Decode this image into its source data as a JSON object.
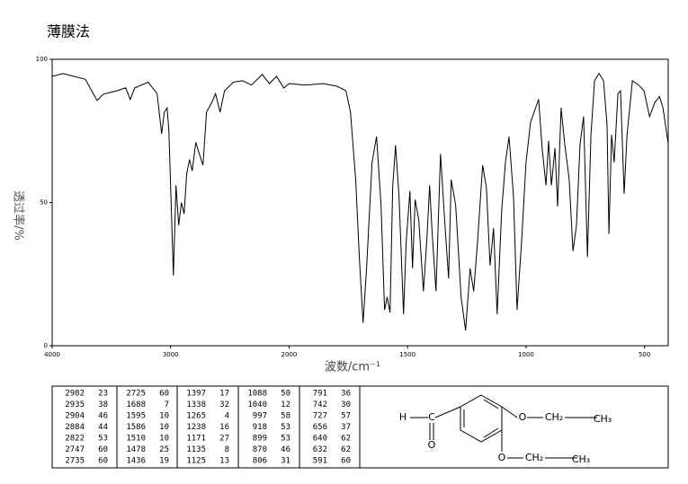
{
  "chart_data": {
    "type": "line",
    "title": "薄膜法",
    "xlabel": "波数/cm⁻¹",
    "ylabel": "透过率/%",
    "xlim": [
      4000,
      400
    ],
    "ylim": [
      0,
      100
    ],
    "xticks": [
      4000,
      3000,
      2000,
      1500,
      1000,
      500
    ],
    "yticks": [
      0,
      50,
      100
    ],
    "x_scale_change": {
      "at": 2000,
      "ratio": 2
    },
    "grid": false,
    "color": "#000000",
    "x": [
      4000,
      3909,
      3720,
      3621,
      3568,
      3455,
      3379,
      3341,
      3303,
      3189,
      3114,
      3076,
      3053,
      3030,
      3015,
      2977,
      2955,
      2932,
      2909,
      2886,
      2864,
      2841,
      2818,
      2788,
      2758,
      2727,
      2697,
      2652,
      2621,
      2583,
      2545,
      2470,
      2394,
      2318,
      2227,
      2167,
      2106,
      2045,
      2000,
      1932,
      1856,
      1798,
      1760,
      1741,
      1719,
      1703,
      1688,
      1673,
      1650,
      1631,
      1612,
      1597,
      1586,
      1574,
      1563,
      1551,
      1536,
      1517,
      1506,
      1490,
      1479,
      1468,
      1453,
      1433,
      1418,
      1407,
      1396,
      1380,
      1361,
      1342,
      1327,
      1316,
      1297,
      1274,
      1255,
      1236,
      1221,
      1205,
      1183,
      1167,
      1152,
      1137,
      1122,
      1103,
      1087,
      1072,
      1053,
      1038,
      1019,
      1000,
      981,
      966,
      947,
      932,
      916,
      905,
      893,
      878,
      867,
      852,
      837,
      818,
      802,
      787,
      772,
      757,
      741,
      726,
      711,
      692,
      673,
      658,
      650,
      639,
      628,
      612,
      601,
      586,
      574,
      551,
      525,
      502,
      479,
      456,
      437,
      422,
      400
    ],
    "values": [
      94,
      95,
      93,
      85.6,
      87.8,
      89,
      90,
      86,
      90,
      92,
      88,
      74,
      81.5,
      83,
      75,
      24.5,
      56,
      42,
      50,
      46,
      60,
      65,
      61,
      71,
      67,
      63,
      81.5,
      85,
      88,
      81.5,
      89,
      92,
      92.5,
      91,
      94.7,
      91.5,
      94,
      90,
      91.5,
      91,
      91.5,
      90.6,
      89,
      81.5,
      58,
      30,
      8,
      27,
      64,
      73,
      49,
      12.5,
      17,
      11.6,
      55,
      70,
      52,
      11,
      36,
      54,
      27,
      51,
      44,
      19,
      38,
      56,
      39,
      19,
      67,
      42,
      23.5,
      58,
      49,
      17,
      5.3,
      27,
      19,
      36,
      63,
      55,
      28,
      41,
      11,
      47,
      64,
      73,
      52,
      12.5,
      36,
      64,
      78,
      81.5,
      86,
      69,
      56,
      71.5,
      56,
      69,
      48.6,
      83,
      70.5,
      58,
      33,
      42,
      70.5,
      80,
      31,
      73.6,
      92.5,
      95,
      92.5,
      77,
      39,
      73.6,
      64,
      88,
      89,
      53,
      73.6,
      92.5,
      91,
      89,
      80,
      85,
      87,
      83,
      70.5
    ]
  },
  "peak_table": {
    "columns": [
      [
        [
          2982,
          23
        ],
        [
          2935,
          38
        ],
        [
          2904,
          46
        ],
        [
          2884,
          44
        ],
        [
          2822,
          53
        ],
        [
          2747,
          60
        ],
        [
          2735,
          60
        ]
      ],
      [
        [
          2725,
          60
        ],
        [
          1688,
          7
        ],
        [
          1595,
          10
        ],
        [
          1586,
          10
        ],
        [
          1510,
          10
        ],
        [
          1478,
          25
        ],
        [
          1436,
          19
        ]
      ],
      [
        [
          1397,
          17
        ],
        [
          1338,
          32
        ],
        [
          1265,
          4
        ],
        [
          1238,
          16
        ],
        [
          1171,
          27
        ],
        [
          1135,
          8
        ],
        [
          1125,
          13
        ]
      ],
      [
        [
          1088,
          50
        ],
        [
          1040,
          12
        ],
        [
          997,
          58
        ],
        [
          918,
          53
        ],
        [
          899,
          53
        ],
        [
          870,
          46
        ],
        [
          806,
          31
        ]
      ],
      [
        [
          791,
          36
        ],
        [
          742,
          30
        ],
        [
          727,
          57
        ],
        [
          656,
          37
        ],
        [
          640,
          62
        ],
        [
          632,
          62
        ],
        [
          591,
          60
        ]
      ]
    ]
  },
  "structure": {
    "labels": [
      "H",
      "C",
      "O",
      "O",
      "CH₂",
      "CH₃",
      "O",
      "CH₂",
      "CH₃"
    ]
  }
}
